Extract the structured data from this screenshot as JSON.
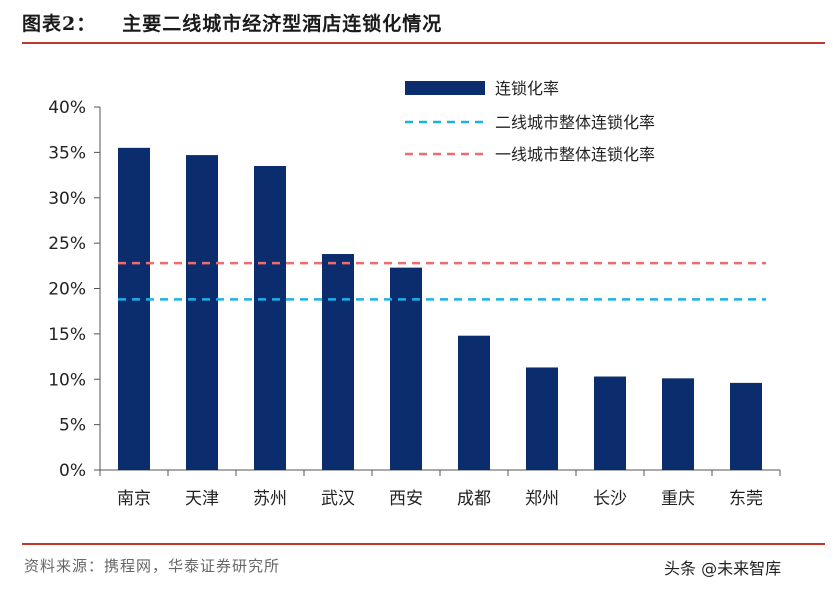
{
  "figure": {
    "label": "图表2：",
    "title": "主要二线城市经济型酒店连锁化情况",
    "source": "资料来源：携程网，华泰证券研究所",
    "watermark": "头条 @未来智库"
  },
  "colors": {
    "bar": "#0b2d6e",
    "second_tier_line": "#1ab0e8",
    "first_tier_line": "#ee6b6e",
    "rule": "#c0392b"
  },
  "chart_data": {
    "type": "bar",
    "categories": [
      "南京",
      "天津",
      "苏州",
      "武汉",
      "西安",
      "成都",
      "郑州",
      "长沙",
      "重庆",
      "东莞"
    ],
    "series": [
      {
        "name": "连锁化率",
        "type": "bar",
        "values": [
          35.5,
          34.7,
          33.5,
          23.8,
          22.3,
          14.8,
          11.3,
          10.3,
          10.1,
          9.6
        ]
      },
      {
        "name": "二线城市整体连锁化率",
        "type": "line",
        "style": "dashed",
        "value": 18.8
      },
      {
        "name": "一线城市整体连锁化率",
        "type": "line",
        "style": "dashed",
        "value": 22.8
      }
    ],
    "y_ticks": [
      "0%",
      "5%",
      "10%",
      "15%",
      "20%",
      "25%",
      "30%",
      "35%",
      "40%"
    ],
    "ylim": [
      0,
      40
    ],
    "unit": "%",
    "grid": false,
    "legend_position": "top-right"
  }
}
